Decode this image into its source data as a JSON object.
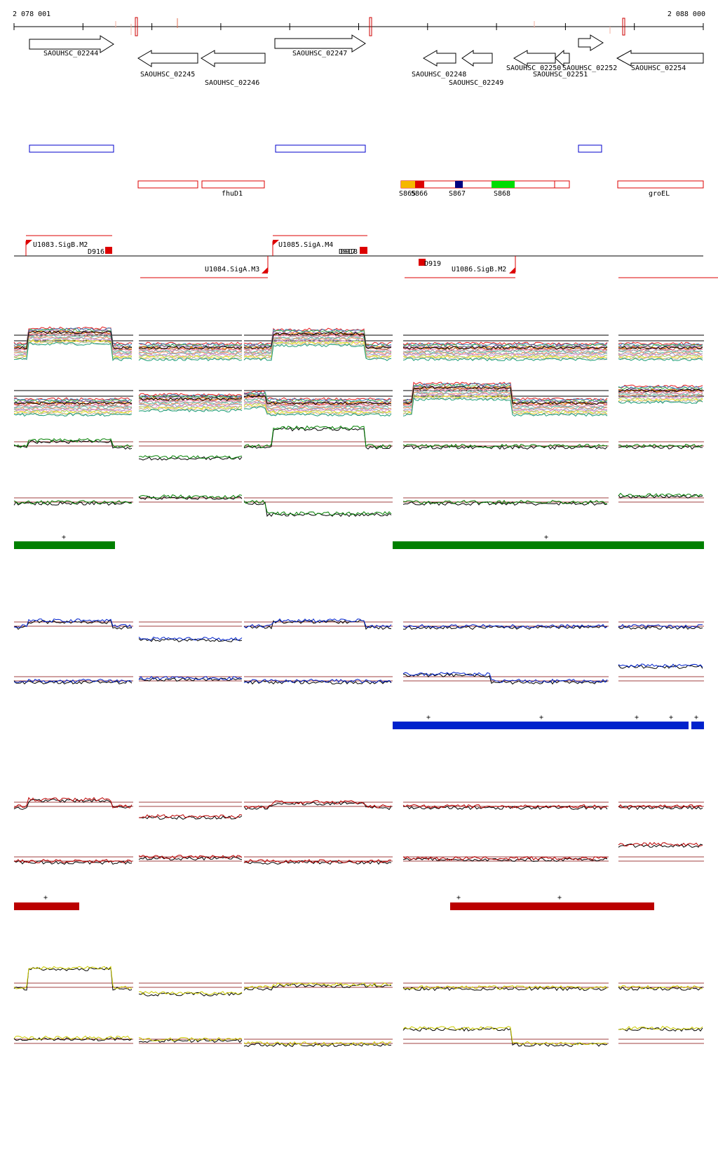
{
  "coordinates": {
    "start": "2 078 001",
    "end": "2 088 000"
  },
  "genes": [
    {
      "id": "SAOUHSC_02244",
      "dir": "+"
    },
    {
      "id": "SAOUHSC_02245",
      "dir": "-"
    },
    {
      "id": "SAOUHSC_02246",
      "dir": "-"
    },
    {
      "id": "SAOUHSC_02247",
      "dir": "+"
    },
    {
      "id": "SAOUHSC_02248",
      "dir": "-"
    },
    {
      "id": "SAOUHSC_02249",
      "dir": "-"
    },
    {
      "id": "SAOUHSC_02250",
      "dir": "-"
    },
    {
      "id": "SAOUHSC_02251",
      "dir": "-"
    },
    {
      "id": "SAOUHSC_02252",
      "dir": "+"
    },
    {
      "id": "SAOUHSC_02254",
      "dir": "-"
    }
  ],
  "annotations": {
    "gene_names": [
      "fhuD1",
      "groEL"
    ],
    "sites": [
      "S865",
      "S866",
      "S867",
      "S868"
    ]
  },
  "transcription_units": {
    "forward": [
      "U1083.SigB.M2",
      "U1085.SigA.M4"
    ],
    "reverse": [
      "U1084.SigA.M3",
      "U1086.SigB.M2"
    ],
    "terminators": [
      "D916",
      "D917",
      "D918",
      "D919"
    ]
  },
  "expression_blocks": [
    {
      "name": "green",
      "color": "#008000",
      "markers": "+"
    },
    {
      "name": "blue",
      "color": "#0022cc",
      "markers": "+"
    },
    {
      "name": "red",
      "color": "#bb0000",
      "markers": "+"
    },
    {
      "name": "yellow",
      "color": "#cccc00"
    }
  ],
  "colors": {
    "forward_box": "#0000cc",
    "reverse_box": "#dd0000",
    "S865": "#f5b800",
    "S866": "#dd0000",
    "S867": "#000080",
    "S868": "#00dd00"
  }
}
